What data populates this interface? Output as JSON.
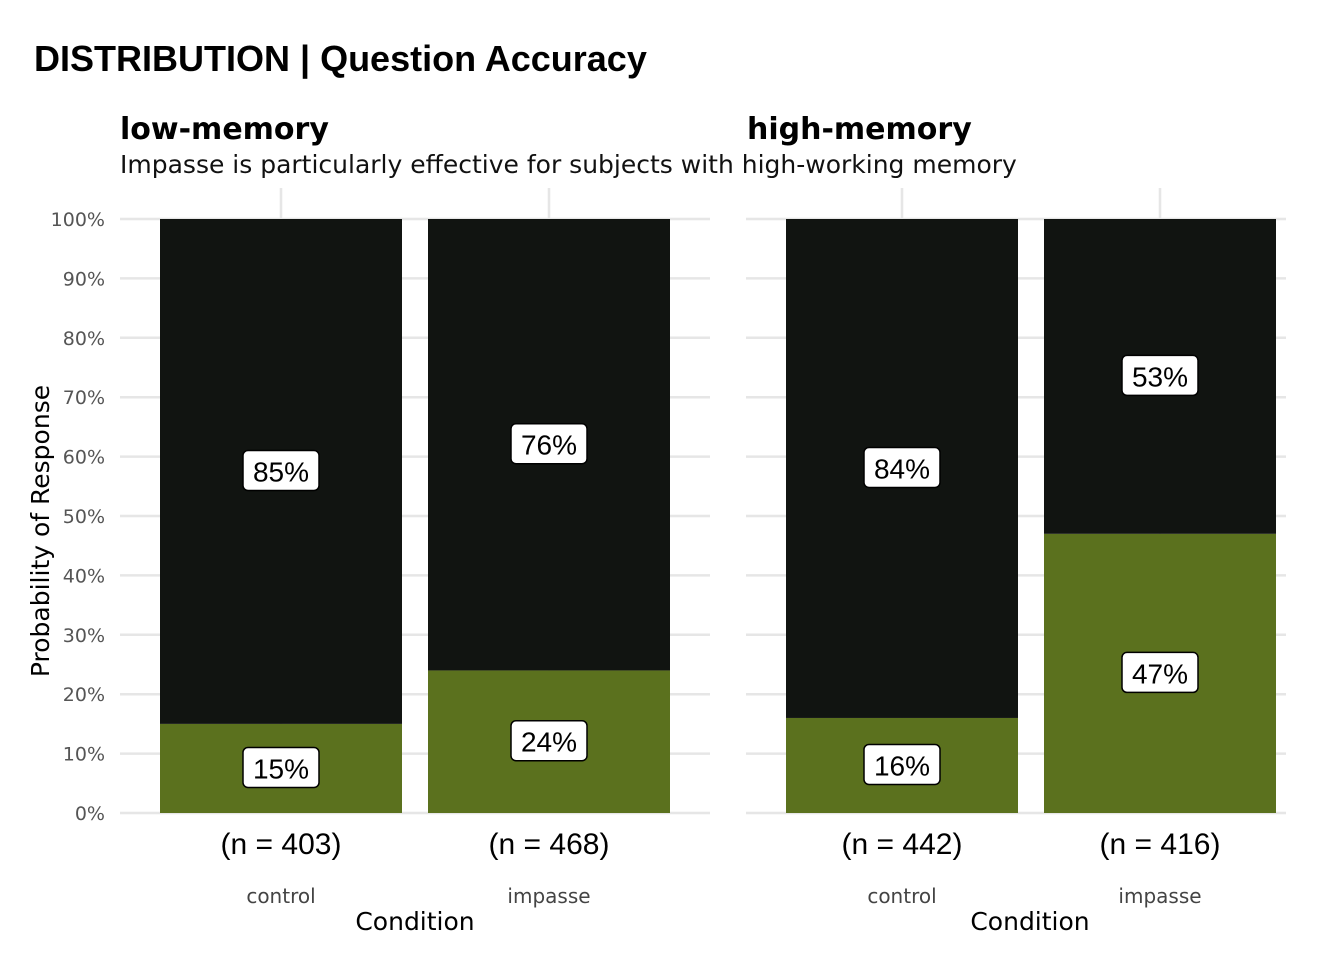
{
  "title": "DISTRIBUTION | Question Accuracy",
  "subtitle": "Impasse is particularly effective for subjects with high-working memory",
  "colors": {
    "incorrect": "#111411",
    "correct": "#5b711e",
    "grid": "#e6e6e6",
    "label_bg": "#ffffff"
  },
  "chart_data": {
    "type": "bar",
    "stacked": true,
    "title": "DISTRIBUTION | Question Accuracy",
    "subtitle": "Impasse is particularly effective for subjects with high-working memory",
    "ylabel": "Probability of Response",
    "xlabel": "Condition",
    "ylim": [
      0,
      100
    ],
    "yticks": [
      "0%",
      "10%",
      "20%",
      "30%",
      "40%",
      "50%",
      "60%",
      "70%",
      "80%",
      "90%",
      "100%"
    ],
    "grid": true,
    "panels": [
      {
        "facet": "low-memory",
        "categories": [
          "control",
          "impasse"
        ],
        "n_labels": [
          "(n = 403)",
          "(n = 468)"
        ],
        "series": [
          {
            "values": [
              15,
              24
            ],
            "labels": [
              "15%",
              "24%"
            ],
            "color": "#5b711e"
          },
          {
            "values": [
              85,
              76
            ],
            "labels": [
              "85%",
              "76%"
            ],
            "color": "#111411"
          }
        ]
      },
      {
        "facet": "high-memory",
        "categories": [
          "control",
          "impasse"
        ],
        "n_labels": [
          "(n = 442)",
          "(n = 416)"
        ],
        "series": [
          {
            "values": [
              16,
              47
            ],
            "labels": [
              "16%",
              "47%"
            ],
            "color": "#5b711e"
          },
          {
            "values": [
              84,
              53
            ],
            "labels": [
              "84%",
              "53%"
            ],
            "color": "#111411"
          }
        ]
      }
    ]
  }
}
